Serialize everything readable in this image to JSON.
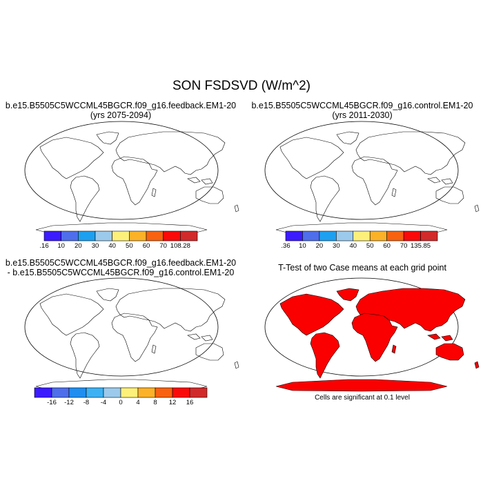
{
  "main_title": "SON FSDSVD (W/m^2)",
  "panels": {
    "top_left": {
      "title_line1": "b.e15.B5505C5WCCML45BGCR.f09_g16.feedback.EM1-20",
      "title_line2": "(yrs 2075-2094)"
    },
    "top_right": {
      "title_line1": "b.e15.B5505C5WCCML45BGCR.f09_g16.control.EM1-20",
      "title_line2": "(yrs 2011-2030)"
    },
    "bottom_left": {
      "title_line1": "b.e15.B5505C5WCCML45BGCR.f09_g16.feedback.EM1-20",
      "title_line2": "- b.e15.B5505C5WCCML45BGCR.f09_g16.control.EM1-20"
    },
    "bottom_right": {
      "title_line1": "T-Test of two Case means at each grid point",
      "note": "Cells are significant at 0.1 level"
    }
  },
  "colorbars": {
    "feedback": {
      "labels": [
        ".16",
        "10",
        "20",
        "30",
        "40",
        "50",
        "60",
        "70",
        "108.28"
      ],
      "colors": [
        "#3c1cff",
        "#4e6eeb",
        "#1ea0f0",
        "#9ccaec",
        "#fdf07a",
        "#fcb228",
        "#f86210",
        "#fb0a0a",
        "#d22a2a"
      ]
    },
    "control": {
      "labels": [
        ".36",
        "10",
        "20",
        "30",
        "40",
        "50",
        "60",
        "70",
        "135.85"
      ],
      "colors": [
        "#3c1cff",
        "#4e6eeb",
        "#1ea0f0",
        "#9ccaec",
        "#fdf07a",
        "#fcb228",
        "#f86210",
        "#fb0a0a",
        "#d22a2a"
      ]
    },
    "difference": {
      "labels": [
        "-16",
        "-12",
        "-8",
        "-4",
        "0",
        "4",
        "8",
        "12",
        "16"
      ],
      "colors": [
        "#3c1cff",
        "#4e6eeb",
        "#1e8ef0",
        "#3cb2f4",
        "#9ccaec",
        "#fdf07a",
        "#fcb228",
        "#f86210",
        "#fb0a0a",
        "#d22a2a"
      ]
    }
  },
  "significance_color": "#fa0000"
}
